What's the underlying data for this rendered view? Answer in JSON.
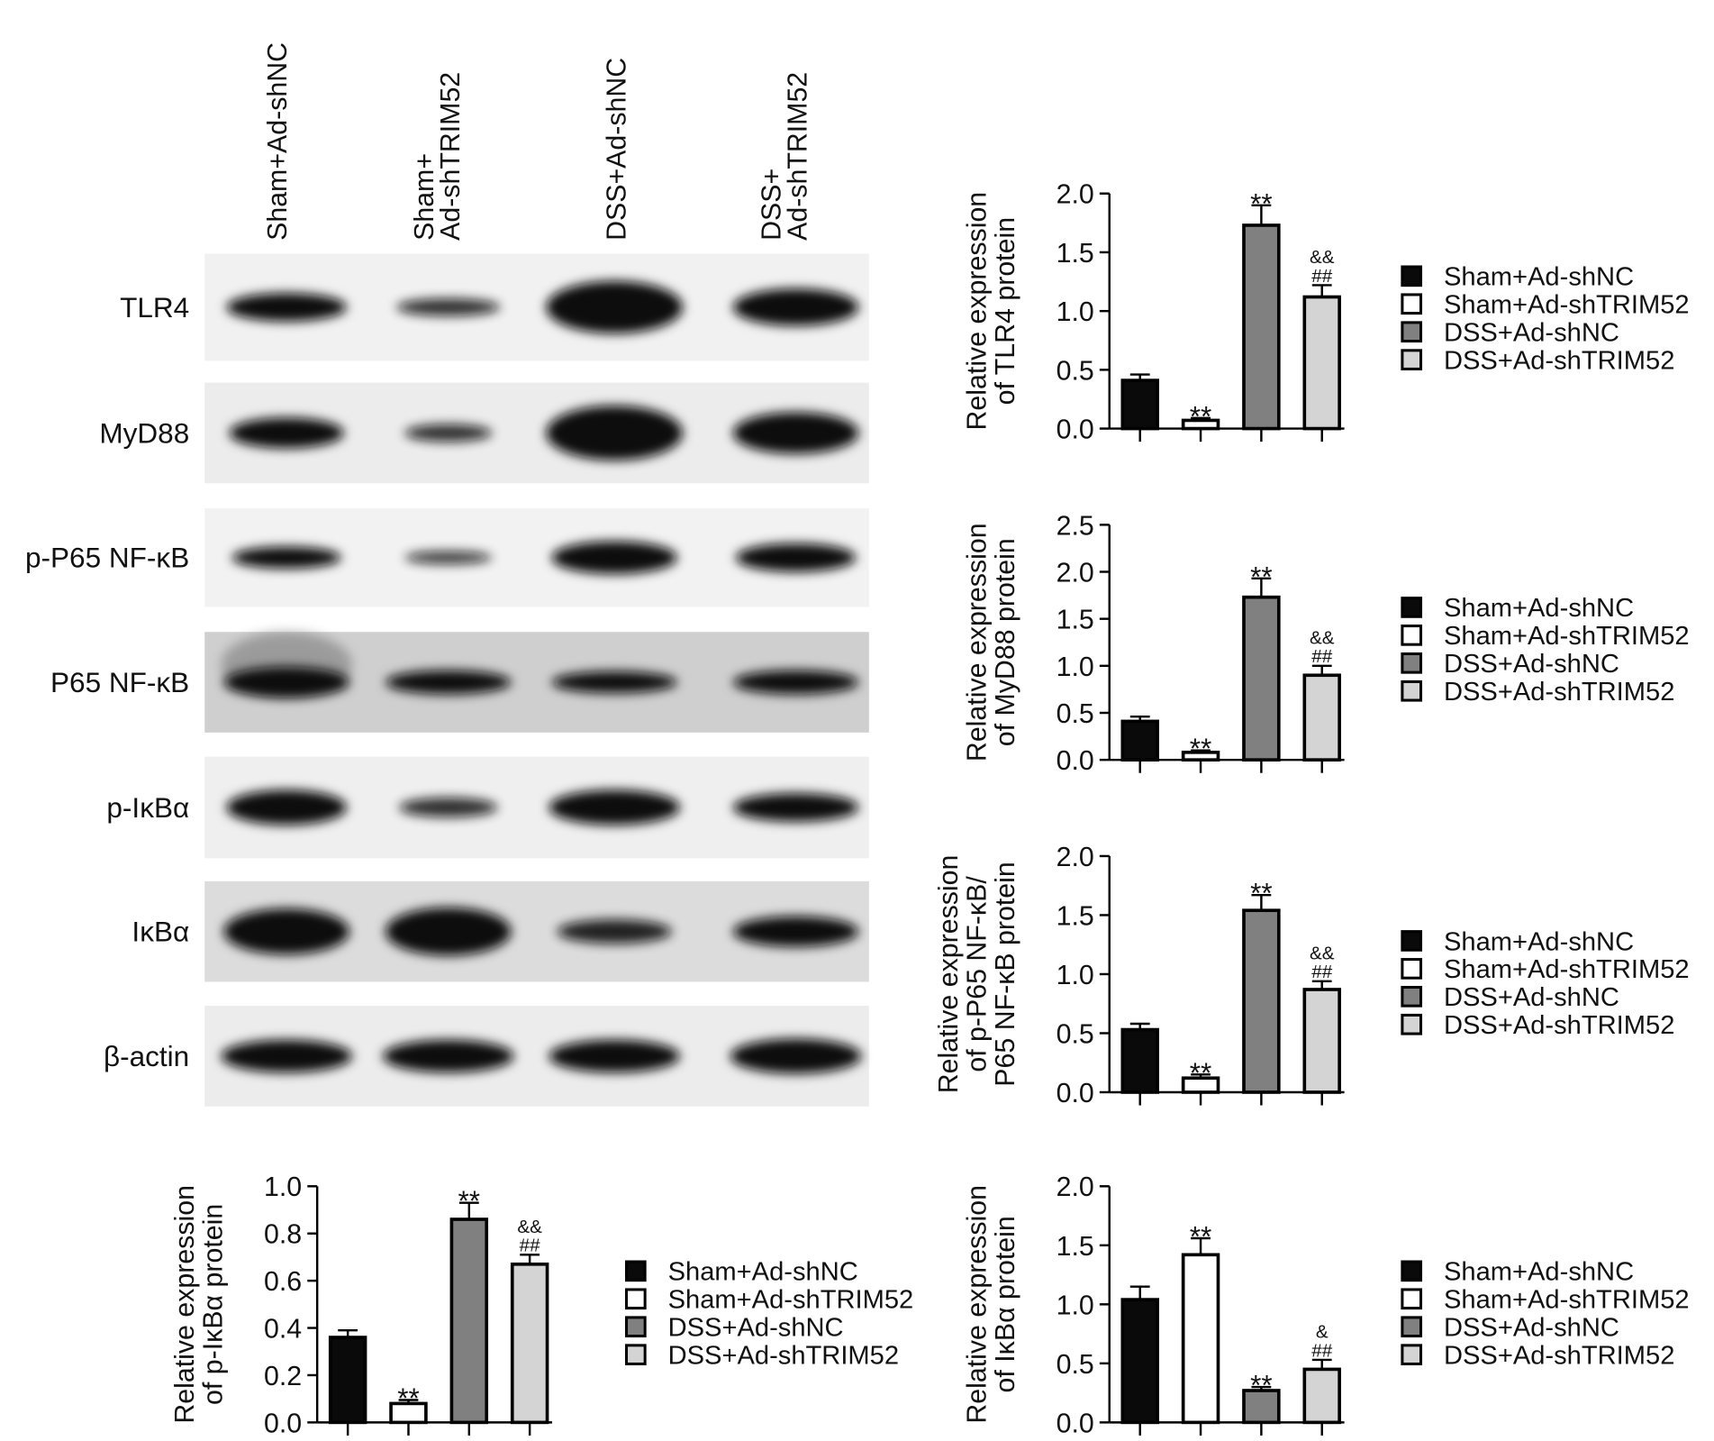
{
  "groups": [
    "Sham+Ad-shNC",
    "Sham+Ad-shTRIM52",
    "DSS+Ad-shNC",
    "DSS+Ad-shTRIM52"
  ],
  "lane_labels": [
    [
      "Sham+Ad-shNC"
    ],
    [
      "Sham+",
      "Ad-shTRIM52"
    ],
    [
      "DSS+Ad-shNC"
    ],
    [
      "DSS+",
      "Ad-shTRIM52"
    ]
  ],
  "blot_rows": [
    "TLR4",
    "MyD88",
    "p-P65 NF-κB",
    "P65 NF-κB",
    "p-IκBα",
    "IκBα",
    "β-actin"
  ],
  "colors": {
    "fills": [
      "#0a0a0a",
      "#ffffff",
      "#808080",
      "#d4d4d4"
    ],
    "stroke": "#000000"
  },
  "chart_data": [
    {
      "type": "bar",
      "ylabel": [
        "Relative expression",
        "of TLR4 protein"
      ],
      "ylim": [
        0,
        2.0
      ],
      "yticks": [
        "0.0",
        "0.5",
        "1.0",
        "1.5",
        "2.0"
      ],
      "categories": [
        "Sham+Ad-shNC",
        "Sham+Ad-shTRIM52",
        "DSS+Ad-shNC",
        "DSS+Ad-shTRIM52"
      ],
      "values": [
        0.41,
        0.07,
        1.73,
        1.12
      ],
      "errors": [
        0.05,
        0.02,
        0.17,
        0.1
      ],
      "annotations": [
        [],
        [
          "**"
        ],
        [
          "**"
        ],
        [
          "&&",
          "##"
        ]
      ],
      "legend": "right"
    },
    {
      "type": "bar",
      "ylabel": [
        "Relative expression",
        "of MyD88 protein"
      ],
      "ylim": [
        0,
        2.5
      ],
      "yticks": [
        "0.0",
        "0.5",
        "1.0",
        "1.5",
        "2.0",
        "2.5"
      ],
      "categories": [
        "Sham+Ad-shNC",
        "Sham+Ad-shTRIM52",
        "DSS+Ad-shNC",
        "DSS+Ad-shTRIM52"
      ],
      "values": [
        0.41,
        0.08,
        1.73,
        0.9
      ],
      "errors": [
        0.05,
        0.02,
        0.2,
        0.1
      ],
      "annotations": [
        [],
        [
          "**"
        ],
        [
          "**"
        ],
        [
          "&&",
          "##"
        ]
      ],
      "legend": "right"
    },
    {
      "type": "bar",
      "ylabel": [
        "Relative expression",
        "of p-P65 NF-κB/",
        "P65 NF-κB protein"
      ],
      "ylim": [
        0,
        2.0
      ],
      "yticks": [
        "0.0",
        "0.5",
        "1.0",
        "1.5",
        "2.0"
      ],
      "categories": [
        "Sham+Ad-shNC",
        "Sham+Ad-shTRIM52",
        "DSS+Ad-shNC",
        "DSS+Ad-shTRIM52"
      ],
      "values": [
        0.53,
        0.12,
        1.54,
        0.87
      ],
      "errors": [
        0.05,
        0.03,
        0.13,
        0.07
      ],
      "annotations": [
        [],
        [
          "**"
        ],
        [
          "**"
        ],
        [
          "&&",
          "##"
        ]
      ],
      "legend": "right"
    },
    {
      "type": "bar",
      "ylabel": [
        "Relative expression",
        "of p-IκBα protein"
      ],
      "ylim": [
        0,
        1.0
      ],
      "yticks": [
        "0.0",
        "0.2",
        "0.4",
        "0.6",
        "0.8",
        "1.0"
      ],
      "categories": [
        "Sham+Ad-shNC",
        "Sham+Ad-shTRIM52",
        "DSS+Ad-shNC",
        "DSS+Ad-shTRIM52"
      ],
      "values": [
        0.36,
        0.08,
        0.86,
        0.67
      ],
      "errors": [
        0.03,
        0.015,
        0.07,
        0.04
      ],
      "annotations": [
        [],
        [
          "**"
        ],
        [
          "**"
        ],
        [
          "&&",
          "##"
        ]
      ],
      "legend": "right"
    },
    {
      "type": "bar",
      "ylabel": [
        "Relative expression",
        "of IκBα protein"
      ],
      "ylim": [
        0,
        2.0
      ],
      "yticks": [
        "0.0",
        "0.5",
        "1.0",
        "1.5",
        "2.0"
      ],
      "categories": [
        "Sham+Ad-shNC",
        "Sham+Ad-shTRIM52",
        "DSS+Ad-shNC",
        "DSS+Ad-shTRIM52"
      ],
      "values": [
        1.04,
        1.42,
        0.27,
        0.45
      ],
      "errors": [
        0.11,
        0.14,
        0.03,
        0.08
      ],
      "annotations": [
        [],
        [
          "**"
        ],
        [
          "**"
        ],
        [
          "&",
          "##"
        ]
      ],
      "legend": "right"
    }
  ]
}
